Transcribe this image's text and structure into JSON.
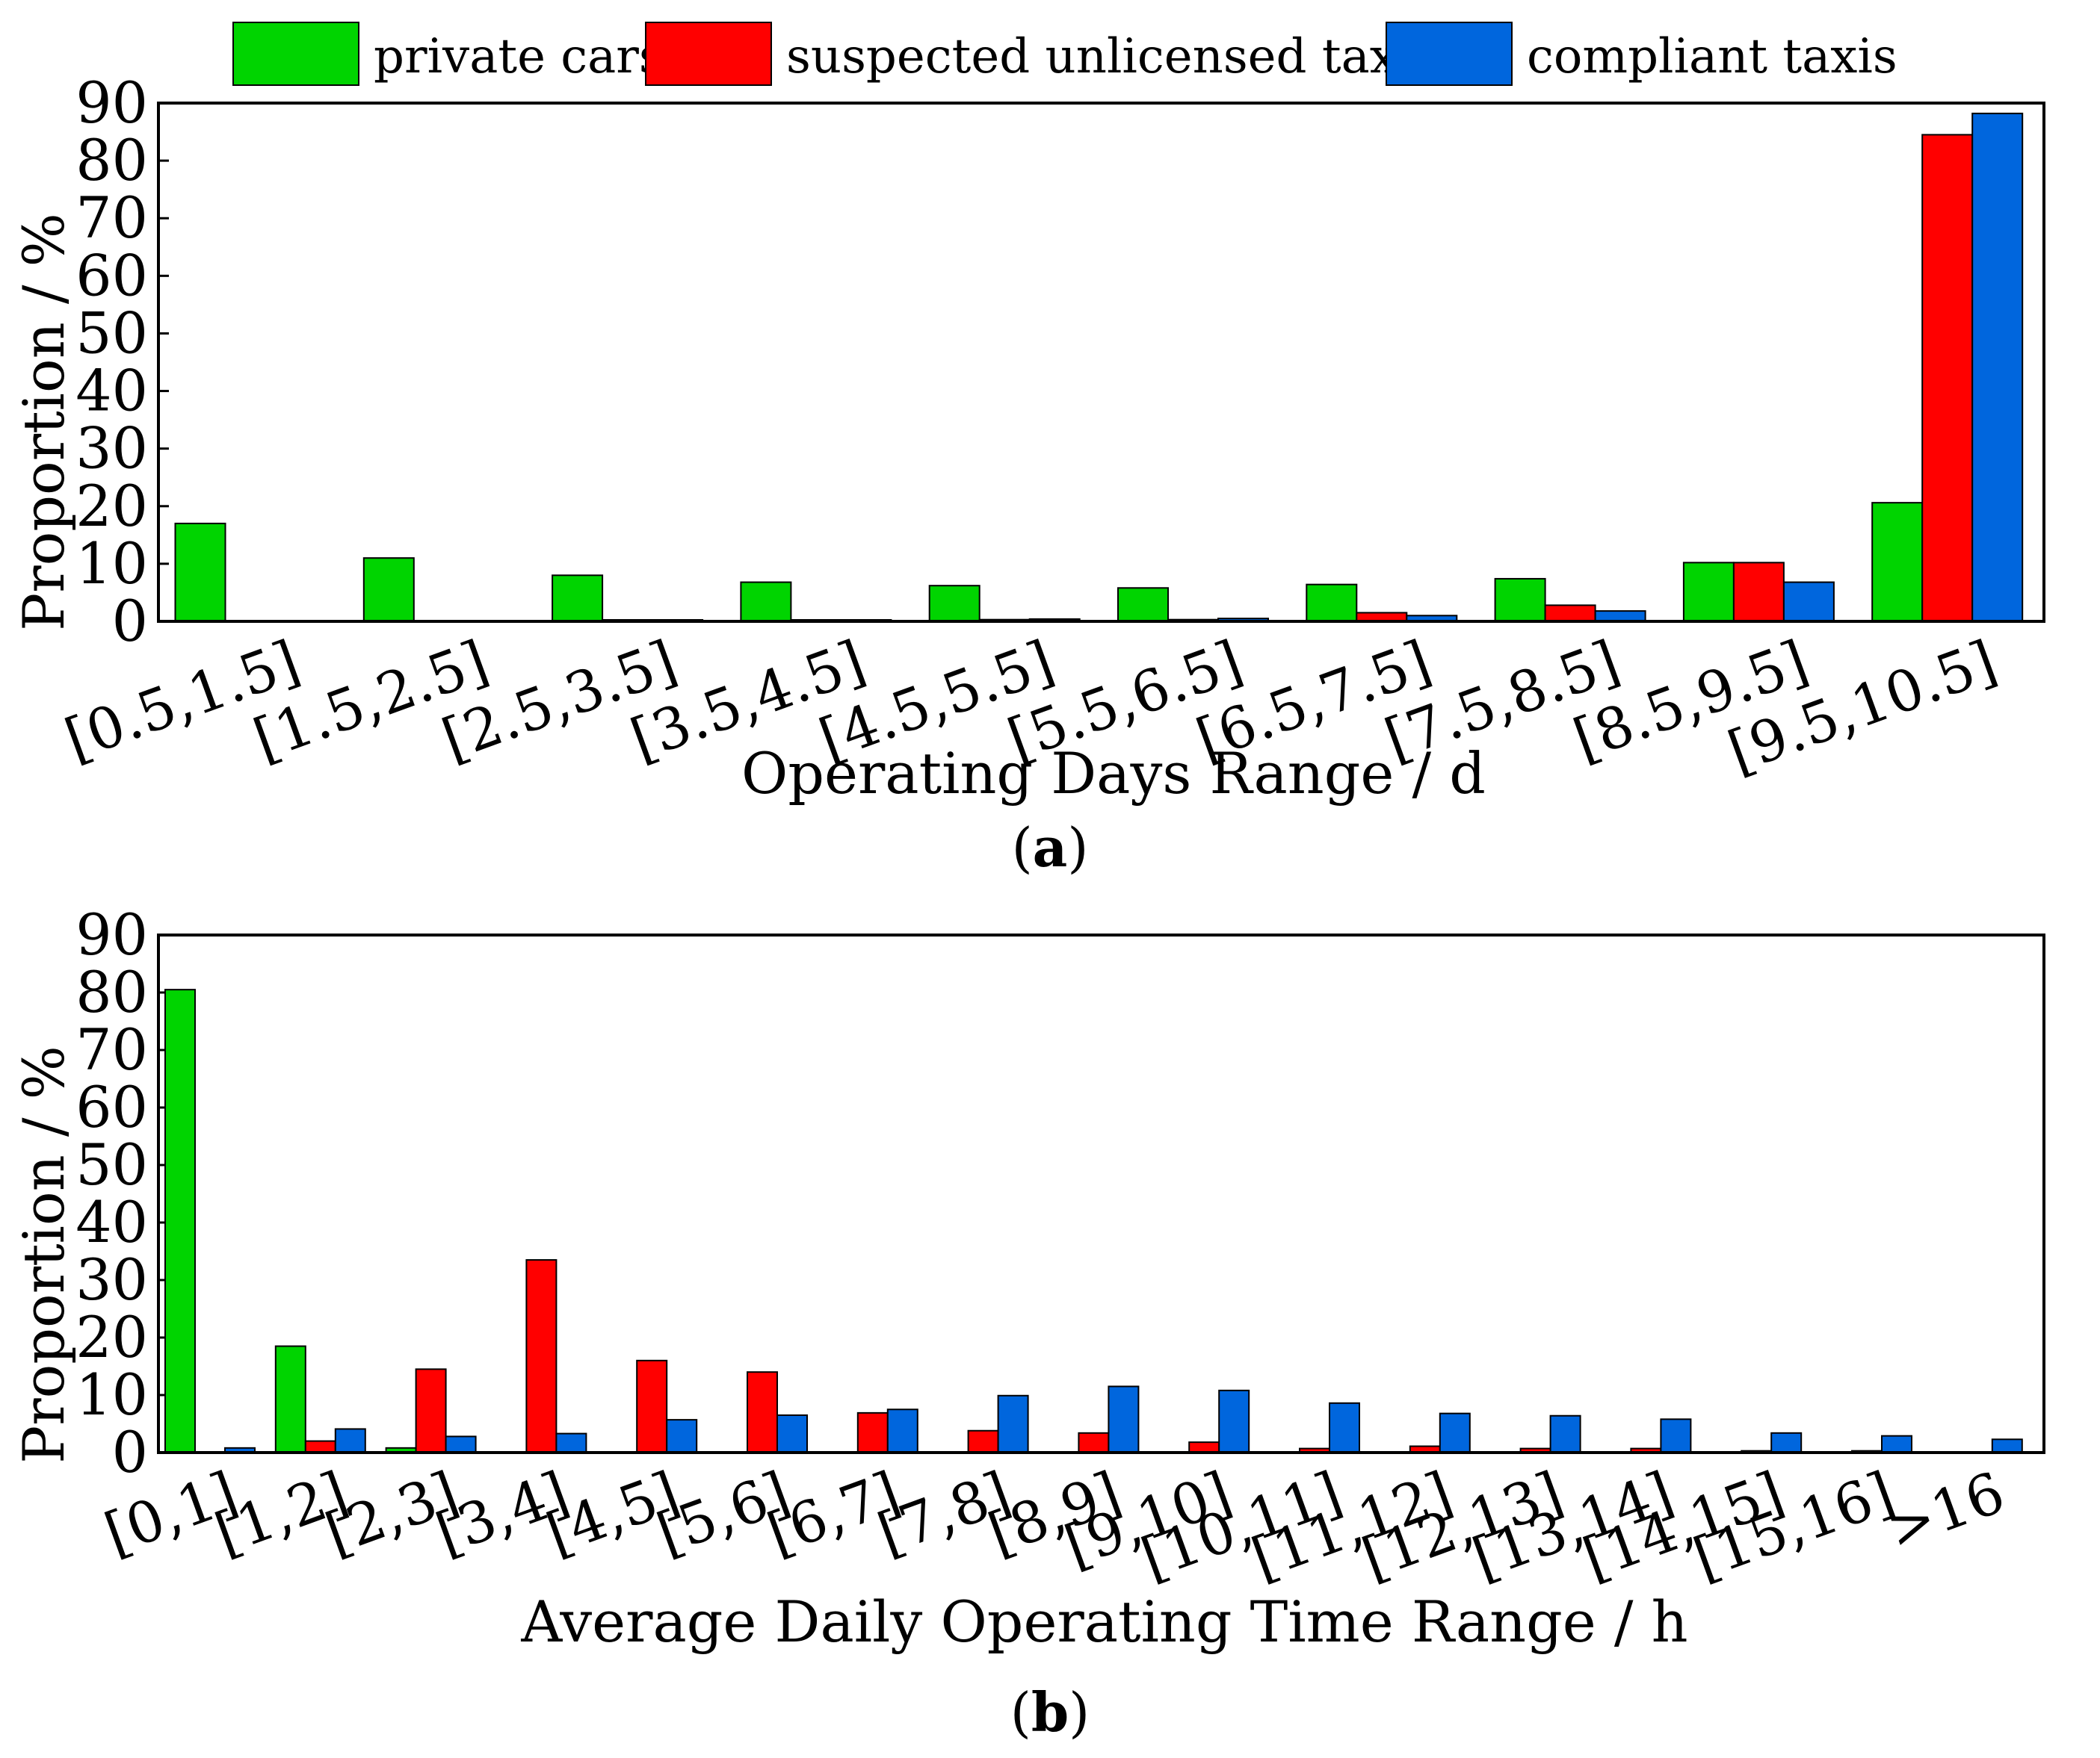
{
  "legend": [
    {
      "name": "private cars",
      "color": "#00d400"
    },
    {
      "name": "suspected unlicensed taxis",
      "color": "#ff0000"
    },
    {
      "name": "compliant taxis",
      "color": "#0066dd"
    }
  ],
  "panels": [
    {
      "label_open": "(",
      "label_bold": "a",
      "label_close": ")"
    },
    {
      "label_open": "(",
      "label_bold": "b",
      "label_close": ")"
    }
  ],
  "chart_data": [
    {
      "type": "bar",
      "title": "",
      "xlabel": "Operating Days Range / d",
      "ylabel": "Proportion / %",
      "ylim": [
        0,
        90
      ],
      "yticks": [
        0,
        10,
        20,
        30,
        40,
        50,
        60,
        70,
        80,
        90
      ],
      "categories": [
        "[0.5,1.5]",
        "[1.5,2.5]",
        "[2.5,3.5]",
        "[3.5,4.5]",
        "[4.5,5.5]",
        "[5.5,6.5]",
        "[6.5,7.5]",
        "[7.5,8.5]",
        "[8.5,9.5]",
        "[9.5,10.5]"
      ],
      "series": [
        {
          "name": "private cars",
          "values": [
            17,
            11,
            8,
            6.8,
            6.2,
            5.8,
            6.4,
            7.4,
            10.2,
            20.6
          ]
        },
        {
          "name": "suspected unlicensed taxis",
          "values": [
            0,
            0,
            0.1,
            0.1,
            0.3,
            0.3,
            1.5,
            2.8,
            10.2,
            84.5
          ]
        },
        {
          "name": "compliant taxis",
          "values": [
            0,
            0,
            0.2,
            0.2,
            0.4,
            0.5,
            1.0,
            1.8,
            6.8,
            88.2
          ]
        }
      ]
    },
    {
      "type": "bar",
      "title": "",
      "xlabel": "Average Daily Operating Time Range / h",
      "ylabel": "Proportion / %",
      "ylim": [
        0,
        90
      ],
      "yticks": [
        0,
        10,
        20,
        30,
        40,
        50,
        60,
        70,
        80,
        90
      ],
      "categories": [
        "[0,1]",
        "[1,2]",
        "[2,3]",
        "[3,4]",
        "[4,5]",
        "[5,6]",
        "[6,7]",
        "[7,8]",
        "[8,9]",
        "[9,10]",
        "[10,11]",
        "[11,12]",
        "[12,13]",
        "[13,14]",
        "[14,15]",
        "[15,16]",
        ">16"
      ],
      "series": [
        {
          "name": "private cars",
          "values": [
            80.5,
            18.5,
            0.8,
            0,
            0,
            0,
            0,
            0,
            0,
            0,
            0,
            0,
            0,
            0,
            0,
            0,
            0
          ]
        },
        {
          "name": "suspected unlicensed taxis",
          "values": [
            0,
            2,
            14.5,
            33.5,
            16,
            14,
            6.9,
            3.8,
            3.4,
            1.8,
            0.7,
            1.1,
            0.7,
            0.7,
            0.3,
            0.3,
            0
          ]
        },
        {
          "name": "compliant taxis",
          "values": [
            0.8,
            4.1,
            2.8,
            3.3,
            5.7,
            6.5,
            7.5,
            9.9,
            11.5,
            10.8,
            8.6,
            6.8,
            6.4,
            5.8,
            3.4,
            2.9,
            2.3
          ]
        }
      ]
    }
  ]
}
